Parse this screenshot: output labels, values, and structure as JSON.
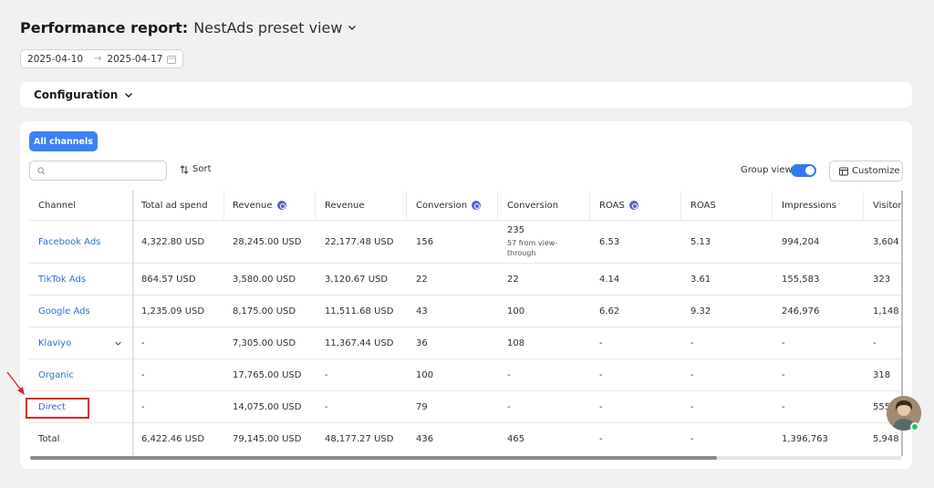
{
  "header": {
    "title": "Performance report:",
    "view_name": "NestAds preset view"
  },
  "date_range": {
    "start": "2025-04-10",
    "arrow": "→",
    "end": "2025-04-17"
  },
  "configuration": {
    "label": "Configuration"
  },
  "toolbar": {
    "tab_label": "All channels",
    "search_placeholder": "",
    "sort_label": "Sort",
    "group_view_label": "Group view",
    "group_view_on": true,
    "customize_label": "Customize"
  },
  "table": {
    "columns": [
      {
        "label": "Channel",
        "badge": false
      },
      {
        "label": "Total ad spend",
        "badge": false
      },
      {
        "label": "Revenue",
        "badge": true
      },
      {
        "label": "Revenue",
        "badge": false
      },
      {
        "label": "Conversion",
        "badge": true
      },
      {
        "label": "Conversion",
        "badge": false
      },
      {
        "label": "ROAS",
        "badge": true
      },
      {
        "label": "ROAS",
        "badge": false
      },
      {
        "label": "Impressions",
        "badge": false
      },
      {
        "label": "Visitors",
        "badge": false
      }
    ],
    "rows": [
      {
        "channel": "Facebook Ads",
        "cells": [
          "4,322.80 USD",
          "28,245.00 USD",
          "22,177.48 USD",
          "156",
          "235",
          "6.53",
          "5.13",
          "994,204",
          "3,604"
        ],
        "sub": "57 from view-through"
      },
      {
        "channel": "TikTok Ads",
        "cells": [
          "864.57 USD",
          "3,580.00 USD",
          "3,120.67 USD",
          "22",
          "22",
          "4.14",
          "3.61",
          "155,583",
          "323"
        ]
      },
      {
        "channel": "Google Ads",
        "cells": [
          "1,235.09 USD",
          "8,175.00 USD",
          "11,511.68 USD",
          "43",
          "100",
          "6.62",
          "9.32",
          "246,976",
          "1,148"
        ]
      },
      {
        "channel": "Klaviyo",
        "cells": [
          "-",
          "7,305.00 USD",
          "11,367.44 USD",
          "36",
          "108",
          "-",
          "-",
          "-",
          "-"
        ],
        "expandable": true
      },
      {
        "channel": "Organic",
        "cells": [
          "-",
          "17,765.00 USD",
          "-",
          "100",
          "-",
          "-",
          "-",
          "-",
          "318"
        ]
      },
      {
        "channel": "Direct",
        "cells": [
          "-",
          "14,075.00 USD",
          "-",
          "79",
          "-",
          "-",
          "-",
          "-",
          "555"
        ]
      }
    ],
    "total": {
      "label": "Total",
      "cells": [
        "6,422.46 USD",
        "79,145.00 USD",
        "48,177.27 USD",
        "436",
        "465",
        "-",
        "-",
        "1,396,763",
        "5,948"
      ]
    }
  },
  "colors": {
    "accent": "#3b82f6",
    "link": "#2f6fd0",
    "highlight": "#e02424",
    "badge": "#5b5fcf"
  }
}
